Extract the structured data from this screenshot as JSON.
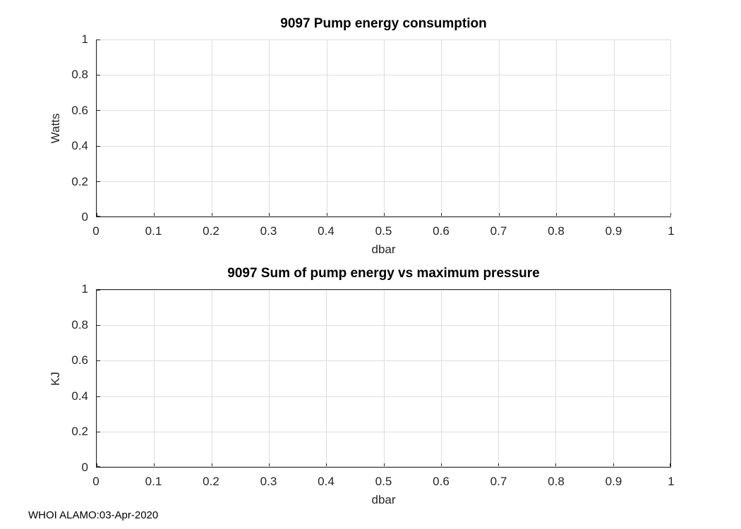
{
  "figure": {
    "footer": "WHOI ALAMO:03-Apr-2020"
  },
  "colors": {
    "background": "#ffffff",
    "axis": "#262626",
    "grid": "#dedede",
    "title": "#000000",
    "tick_label": "#262626"
  },
  "chart_data": [
    {
      "type": "line",
      "title": "9097 Pump energy consumption",
      "xlabel": "dbar",
      "ylabel": "Watts",
      "xlim": [
        0,
        1
      ],
      "ylim": [
        0,
        1
      ],
      "xticks": [
        0,
        0.1,
        0.2,
        0.3,
        0.4,
        0.5,
        0.6,
        0.7,
        0.8,
        0.9,
        1
      ],
      "xtick_labels": [
        "0",
        "0.1",
        "0.2",
        "0.3",
        "0.4",
        "0.5",
        "0.6",
        "0.7",
        "0.8",
        "0.9",
        "1"
      ],
      "yticks": [
        0,
        0.2,
        0.4,
        0.6,
        0.8,
        1
      ],
      "ytick_labels": [
        "0",
        "0.2",
        "0.4",
        "0.6",
        "0.8",
        "1"
      ],
      "grid": true,
      "box": false,
      "legend": null,
      "series": []
    },
    {
      "type": "line",
      "title": "9097 Sum of pump energy vs maximum pressure",
      "xlabel": "dbar",
      "ylabel": "KJ",
      "xlim": [
        0,
        1
      ],
      "ylim": [
        0,
        1
      ],
      "xticks": [
        0,
        0.1,
        0.2,
        0.3,
        0.4,
        0.5,
        0.6,
        0.7,
        0.8,
        0.9,
        1
      ],
      "xtick_labels": [
        "0",
        "0.1",
        "0.2",
        "0.3",
        "0.4",
        "0.5",
        "0.6",
        "0.7",
        "0.8",
        "0.9",
        "1"
      ],
      "yticks": [
        0,
        0.2,
        0.4,
        0.6,
        0.8,
        1
      ],
      "ytick_labels": [
        "0",
        "0.2",
        "0.4",
        "0.6",
        "0.8",
        "1"
      ],
      "grid": true,
      "box": true,
      "legend": null,
      "series": []
    }
  ]
}
